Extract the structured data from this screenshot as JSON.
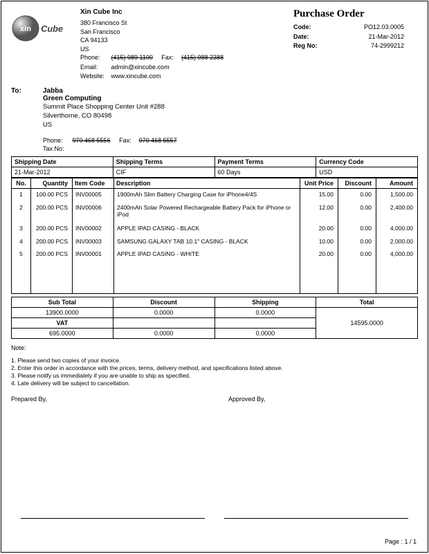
{
  "company": {
    "name": "Xin Cube Inc",
    "addr1": "380 Francisco St",
    "addr2": "San Francisco",
    "addr3": "CA 94133",
    "addr4": "US",
    "phone_label": "Phone:",
    "phone": "(415) 989 1100",
    "fax_label": "Fax:",
    "fax": "(415) 988 2388",
    "email_label": "Email:",
    "email": "admin@xincube.com",
    "website_label": "Website:",
    "website": "www.xincube.com"
  },
  "po": {
    "title": "Purchase Order",
    "code_label": "Code:",
    "code": "PO12.03.0005",
    "date_label": "Date:",
    "date": "21-Mar-2012",
    "regno_label": "Reg No:",
    "regno": "74-2999212"
  },
  "to": {
    "label": "To:",
    "name": "Jabba",
    "company": "Green Computing",
    "addr1": "Summit Place Shopping Center  Unit #288",
    "addr2": "Silverthorne, CO 80498",
    "addr3": "US",
    "phone_label": "Phone:",
    "phone": "970 468 5556",
    "fax_label": "Fax:",
    "fax": "970 468 5557",
    "tax_label": "Tax No:"
  },
  "terms": {
    "h1": "Shipping Date",
    "v1": "21-Mar-2012",
    "h2": "Shipping Terms",
    "v2": "CIF",
    "h3": "Payment Terms",
    "v3": "60 Days",
    "h4": "Currency Code",
    "v4": "USD"
  },
  "items_header": {
    "no": "No.",
    "qty": "Quantity",
    "code": "Item Code",
    "desc": "Description",
    "up": "Unit Price",
    "disc": "Discount",
    "amt": "Amount"
  },
  "items": [
    {
      "no": "1",
      "qty": "100.00 PCS",
      "code": "INV00005",
      "desc": "1900mAh Slim Battery Charging Case for iPhone4/4S",
      "up": "15.00",
      "disc": "0.00",
      "amt": "1,500.00"
    },
    {
      "no": "2",
      "qty": "200.00 PCS",
      "code": "INV00006",
      "desc": "2400mAh Solar Powered Rechargeable Battery Pack for iPhone or iPod",
      "up": "12.00",
      "disc": "0.00",
      "amt": "2,400.00"
    },
    {
      "no": "3",
      "qty": "200.00 PCS",
      "code": "INV00002",
      "desc": "APPLE IPAD CASING - BLACK",
      "up": "20.00",
      "disc": "0.00",
      "amt": "4,000.00"
    },
    {
      "no": "4",
      "qty": "200.00 PCS",
      "code": "INV00003",
      "desc": "SAMSUNG GALAXY TAB 10.1\" CASING - BLACK",
      "up": "10.00",
      "disc": "0.00",
      "amt": "2,000.00"
    },
    {
      "no": "5",
      "qty": "200.00 PCS",
      "code": "INV00001",
      "desc": "APPLE IPAD CASING - WHITE",
      "up": "20.00",
      "disc": "0.00",
      "amt": "4,000.00"
    }
  ],
  "totals": {
    "h_sub": "Sub Total",
    "h_disc": "Discount",
    "h_ship": "Shipping",
    "h_total": "Total",
    "sub": "13900.0000",
    "disc": "0.0000",
    "ship": "0.0000",
    "total": "14595.0000",
    "h_vat": "VAT",
    "vat": "695.0000",
    "disc2": "0.0000",
    "ship2": "0.0000"
  },
  "notes": {
    "label": "Note:",
    "n1": "1. Please send two copies of your invoice.",
    "n2": "2. Enter this order in accordance with the prices, terms, delivery method, and specifications listed above.",
    "n3": "3. Please notify us immediately if you are unable to ship as specified.",
    "n4": "4. Late delivery will be subject to cancellation."
  },
  "sign": {
    "prepared": "Prepared By,",
    "approved": "Approved By,"
  },
  "pager": "Page : 1 / 1",
  "colors": {
    "text": "#000000",
    "border": "#000000",
    "bg": "#ffffff"
  }
}
